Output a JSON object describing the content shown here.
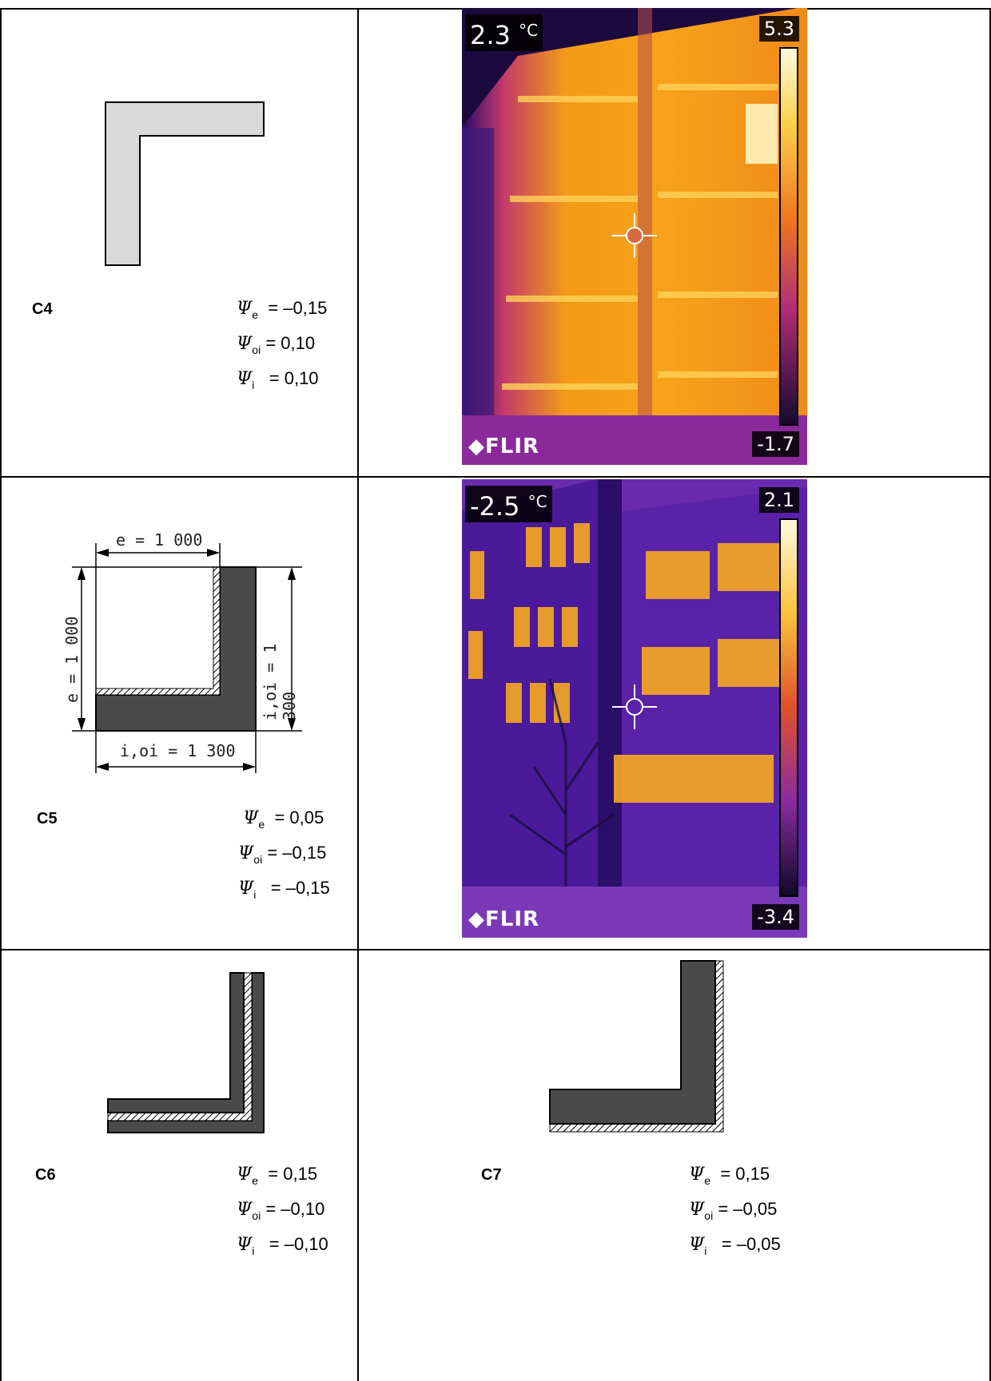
{
  "rows": [
    {
      "left": {
        "label": "C4",
        "psi": [
          {
            "sym": "Ψ",
            "sub": "e",
            "value": "= –0,15"
          },
          {
            "sym": "Ψ",
            "sub": "oi",
            "value": "= 0,10"
          },
          {
            "sym": "Ψ",
            "sub": "i",
            "value": "= 0,10"
          }
        ]
      },
      "right": {
        "thermal": {
          "spot_temp": "2.3",
          "unit": "°C",
          "scale_max": "5.3",
          "scale_min": "-1.7",
          "brand": "FLIR"
        }
      }
    },
    {
      "left": {
        "label": "C5",
        "dims": {
          "top": "e = 1 000",
          "left": "e = 1 000",
          "right": "i,oi = 1 300",
          "bottom": "i,oi = 1 300"
        },
        "psi": [
          {
            "sym": "Ψ",
            "sub": "e",
            "value": "= 0,05"
          },
          {
            "sym": "Ψ",
            "sub": "oi",
            "value": "= –0,15"
          },
          {
            "sym": "Ψ",
            "sub": "i",
            "value": "= –0,15"
          }
        ]
      },
      "right": {
        "thermal": {
          "spot_temp": "-2.5",
          "unit": "°C",
          "scale_max": "2.1",
          "scale_min": "-3.4",
          "brand": "FLIR"
        }
      }
    },
    {
      "left": {
        "label": "C6",
        "psi": [
          {
            "sym": "Ψ",
            "sub": "e",
            "value": "= 0,15"
          },
          {
            "sym": "Ψ",
            "sub": "oi",
            "value": "= –0,10"
          },
          {
            "sym": "Ψ",
            "sub": "i",
            "value": "= –0,10"
          }
        ]
      },
      "right": {
        "label": "C7",
        "psi": [
          {
            "sym": "Ψ",
            "sub": "e",
            "value": "= 0,15"
          },
          {
            "sym": "Ψ",
            "sub": "oi",
            "value": "= –0,05"
          },
          {
            "sym": "Ψ",
            "sub": "i",
            "value": "= –0,05"
          }
        ]
      }
    }
  ]
}
